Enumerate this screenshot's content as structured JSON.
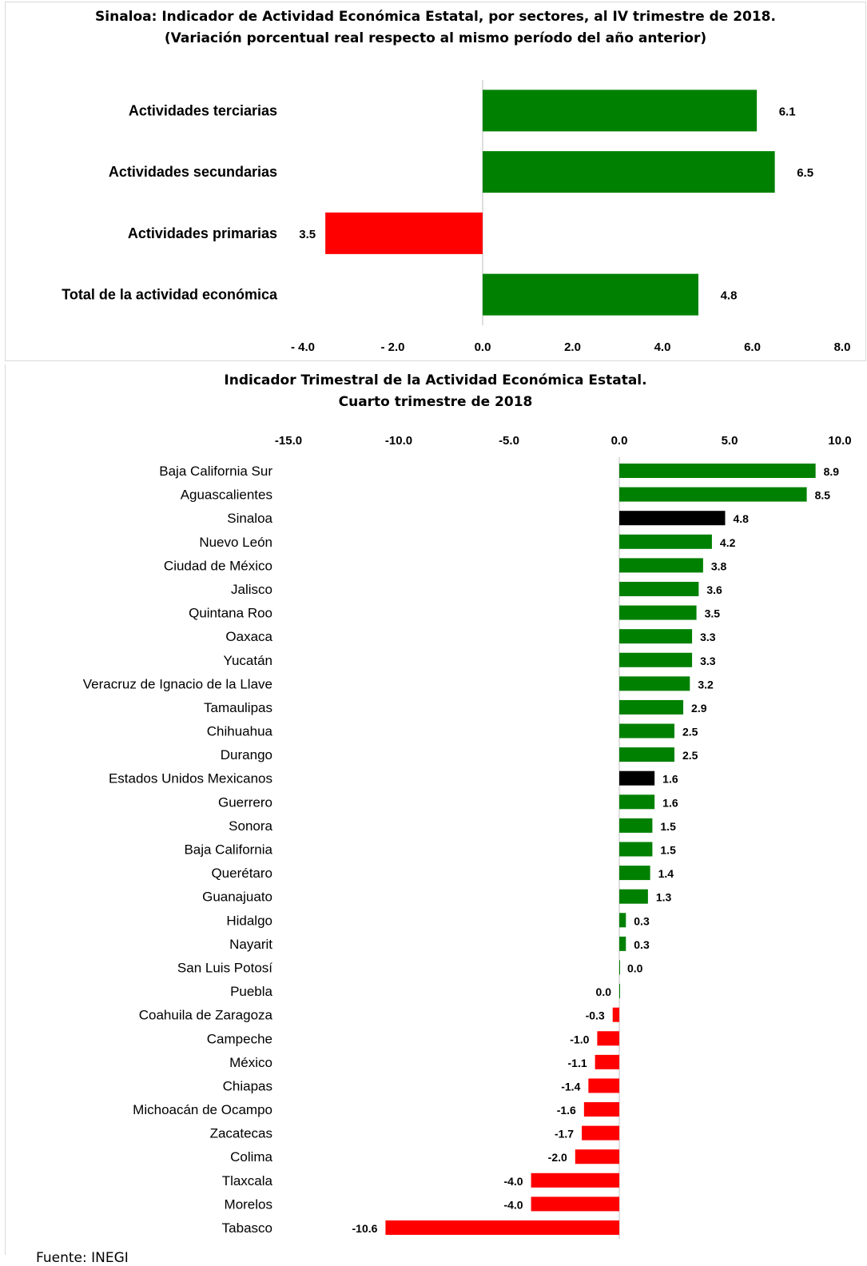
{
  "chart_data": [
    {
      "type": "bar",
      "orientation": "horizontal",
      "title": "Sinaloa: Indicador de Actividad Económica Estatal, por sectores, al IV trimestre de 2018.",
      "subtitle": "(Variación porcentual real respecto al mismo período del año anterior)",
      "categories": [
        "Actividades terciarias",
        "Actividades secundarias",
        "Actividades primarias",
        "Total de la actividad económica"
      ],
      "values": [
        6.1,
        6.5,
        -3.5,
        4.8
      ],
      "data_labels": [
        "6.1",
        "6.5",
        "3.5",
        "4.8"
      ],
      "colors": [
        "#008000",
        "#008000",
        "#ff0000",
        "#008000"
      ],
      "xlim": [
        -4.0,
        8.0
      ],
      "ticks": [
        -4,
        -2,
        0,
        2,
        4,
        6,
        8
      ],
      "tick_labels": [
        "- 4.0",
        "- 2.0",
        "0.0",
        "2.0",
        "4.0",
        "6.0",
        "8.0"
      ],
      "grid": false
    },
    {
      "type": "bar",
      "orientation": "horizontal",
      "title": "Indicador Trimestral de la Actividad Económica Estatal.",
      "subtitle": "Cuarto trimestre de 2018",
      "categories": [
        "Baja California Sur",
        "Aguascalientes",
        "Sinaloa",
        "Nuevo León",
        "Ciudad de México",
        "Jalisco",
        "Quintana Roo",
        "Oaxaca",
        "Yucatán",
        "Veracruz de Ignacio de la Llave",
        "Tamaulipas",
        "Chihuahua",
        "Durango",
        "Estados Unidos Mexicanos",
        "Guerrero",
        "Sonora",
        "Baja California",
        "Querétaro",
        "Guanajuato",
        "Hidalgo",
        "Nayarit",
        "San Luis Potosí",
        "Puebla",
        "Coahuila de Zaragoza",
        "Campeche",
        "México",
        "Chiapas",
        "Michoacán de Ocampo",
        "Zacatecas",
        "Colima",
        "Tlaxcala",
        "Morelos",
        "Tabasco"
      ],
      "values": [
        8.9,
        8.5,
        4.8,
        4.2,
        3.8,
        3.6,
        3.5,
        3.3,
        3.3,
        3.2,
        2.9,
        2.5,
        2.5,
        1.6,
        1.6,
        1.5,
        1.5,
        1.4,
        1.3,
        0.3,
        0.3,
        0.0,
        0.0,
        -0.3,
        -1.0,
        -1.1,
        -1.4,
        -1.6,
        -1.7,
        -2.0,
        -4.0,
        -4.0,
        -10.6
      ],
      "data_labels": [
        "8.9",
        "8.5",
        "4.8",
        "4.2",
        "3.8",
        "3.6",
        "3.5",
        "3.3",
        "3.3",
        "3.2",
        "2.9",
        "2.5",
        "2.5",
        "1.6",
        "1.6",
        "1.5",
        "1.5",
        "1.4",
        "1.3",
        "0.3",
        "0.3",
        "0.0",
        "0.0",
        "-0.3",
        "-1.0",
        "-1.1",
        "-1.4",
        "-1.6",
        "-1.7",
        "-2.0",
        "-4.0",
        "-4.0",
        "-10.6"
      ],
      "highlight": [
        "Sinaloa",
        "Estados Unidos Mexicanos"
      ],
      "colors": {
        "positive": "#008000",
        "negative": "#ff0000",
        "highlight": "#000000"
      },
      "xlim": [
        -15.0,
        10.0
      ],
      "ticks": [
        -15,
        -10,
        -5,
        0,
        5,
        10
      ],
      "tick_labels": [
        "-15.0",
        "-10.0",
        "-5.0",
        "0.0",
        "5.0",
        "10.0"
      ],
      "grid": false
    }
  ],
  "source": "Fuente: INEGI"
}
